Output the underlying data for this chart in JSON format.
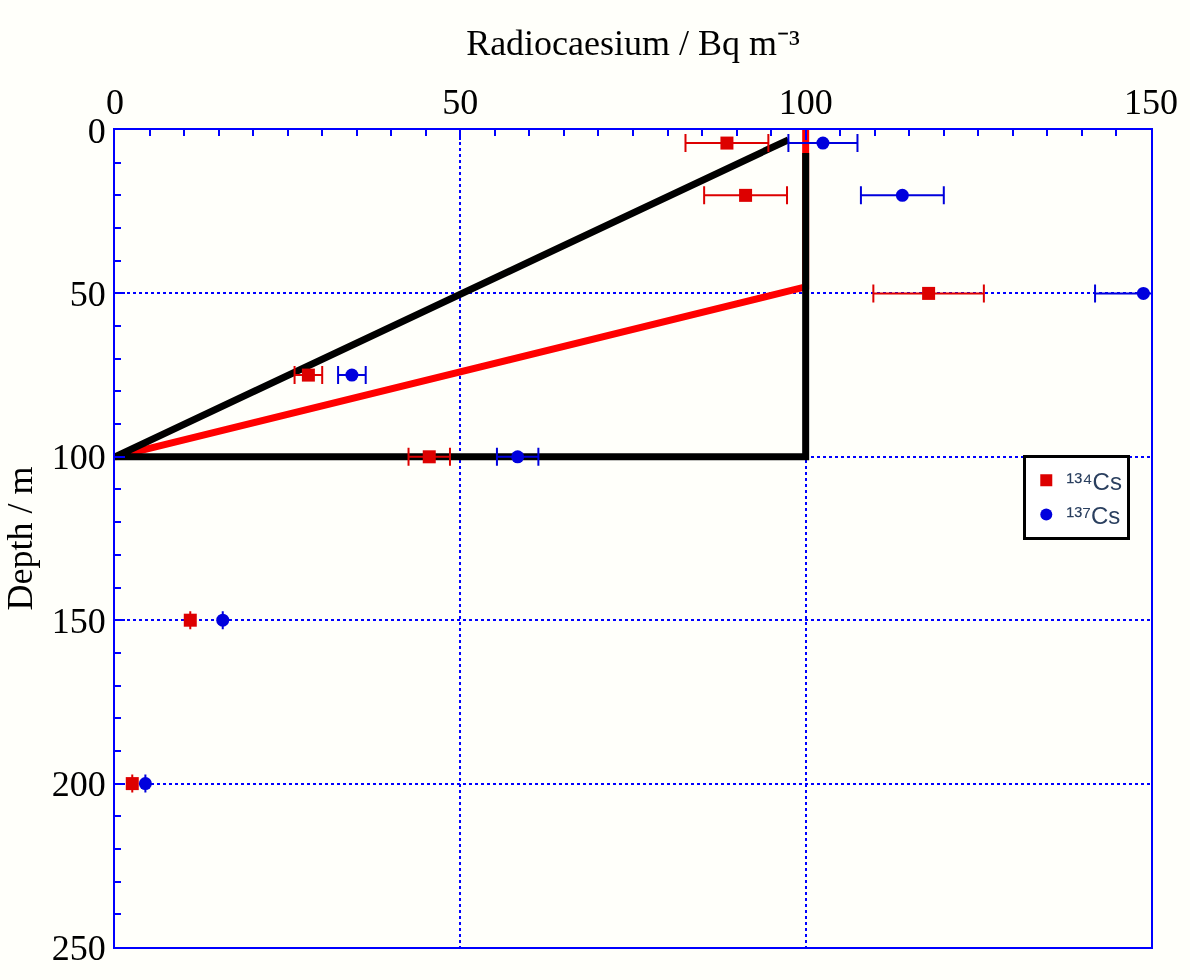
{
  "chart_data": {
    "type": "scatter",
    "xlabel": "Radiocaesium / Bq m⁻³",
    "ylabel": "Depth / m",
    "xlim": [
      0,
      150
    ],
    "xticks": [
      0,
      50,
      100,
      150
    ],
    "ylim": [
      250,
      0
    ],
    "yticks": [
      0,
      50,
      100,
      150,
      200,
      250
    ],
    "grid": true,
    "legend": "right",
    "series": [
      {
        "name": "¹³⁴Cs",
        "color": "#dd0000",
        "marker": "square",
        "x": [
          88.6,
          91.3,
          117.8,
          28.0,
          45.5,
          10.9,
          2.5
        ],
        "values": [
          4,
          20,
          50,
          75,
          100,
          150,
          200
        ],
        "xerrors": [
          6,
          6,
          8,
          2,
          3,
          null,
          null
        ]
      },
      {
        "name": "¹³⁷Cs",
        "color": "#0000dd",
        "marker": "circle",
        "x": [
          102.5,
          114,
          148.9,
          34.3,
          58.3,
          15.6,
          4.4
        ],
        "values": [
          4,
          20,
          50,
          75,
          100,
          150,
          200
        ],
        "xerrors": [
          5,
          6,
          7,
          2,
          3,
          null,
          null
        ]
      },
      {
        "type": "line",
        "color": "#000000",
        "marker": "none",
        "x": [
          97.5,
          0,
          100,
          100
        ],
        "values": [
          3,
          100,
          100,
          7
        ]
      },
      {
        "type": "line",
        "color": "#ff0000",
        "marker": "none",
        "x": [
          0,
          100,
          100
        ],
        "values": [
          100,
          48,
          0
        ]
      }
    ]
  }
}
